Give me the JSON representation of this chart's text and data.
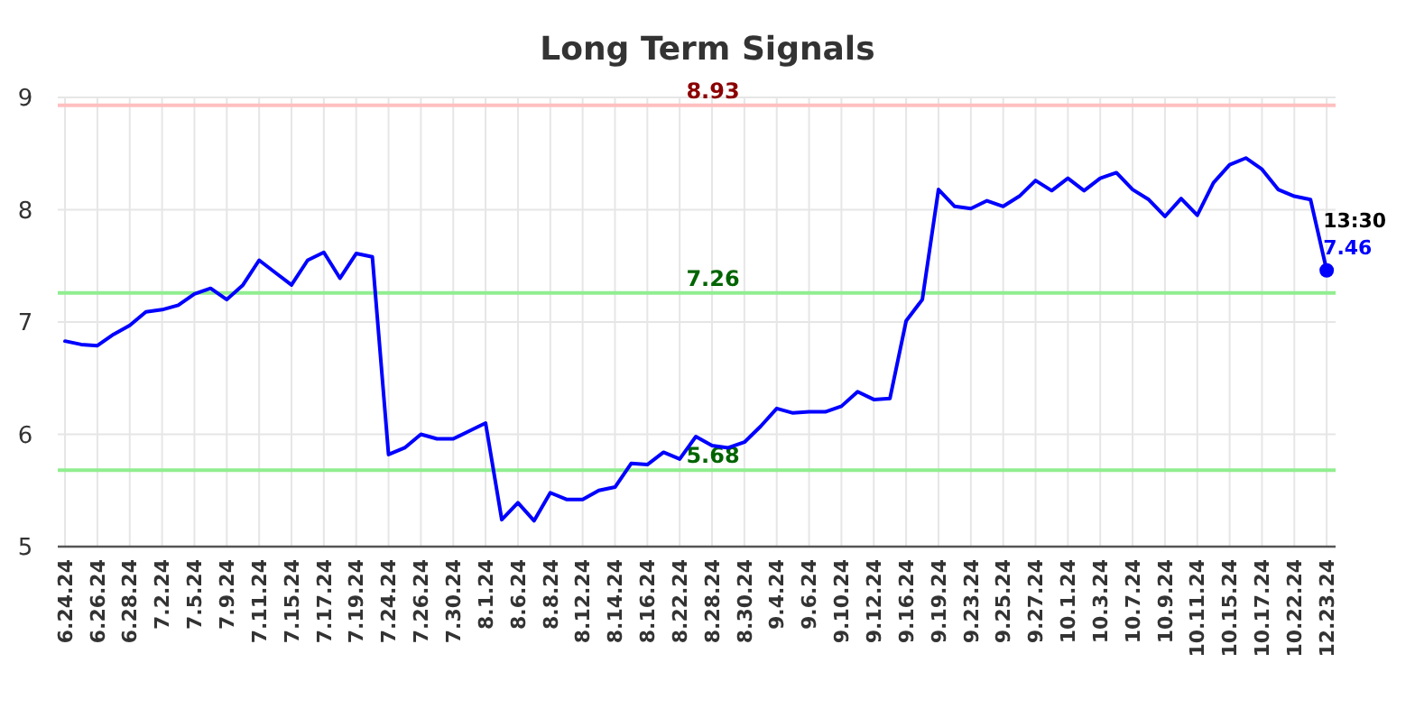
{
  "chart_data": {
    "type": "line",
    "title": "Long Term Signals",
    "categories": [
      "6.24.24",
      null,
      "6.26.24",
      null,
      "6.28.24",
      null,
      "7.2.24",
      null,
      "7.5.24",
      null,
      "7.9.24",
      null,
      "7.11.24",
      null,
      "7.15.24",
      null,
      "7.17.24",
      null,
      "7.19.24",
      null,
      "7.24.24",
      null,
      "7.26.24",
      null,
      "7.30.24",
      null,
      "8.1.24",
      null,
      "8.6.24",
      null,
      "8.8.24",
      null,
      "8.12.24",
      null,
      "8.14.24",
      null,
      "8.16.24",
      null,
      "8.22.24",
      null,
      "8.28.24",
      null,
      "8.30.24",
      null,
      "9.4.24",
      null,
      "9.6.24",
      null,
      "9.10.24",
      null,
      "9.12.24",
      null,
      "9.16.24",
      null,
      "9.19.24",
      null,
      "9.23.24",
      null,
      "9.25.24",
      null,
      "9.27.24",
      null,
      "10.1.24",
      null,
      "10.3.24",
      null,
      "10.7.24",
      null,
      "10.9.24",
      null,
      "10.11.24",
      null,
      "10.15.24",
      null,
      "10.17.24",
      null,
      "10.22.24",
      null,
      "12.23.24"
    ],
    "series": [
      {
        "color": "#0000ff",
        "values": [
          6.83,
          6.8,
          6.79,
          6.89,
          6.97,
          7.09,
          7.11,
          7.15,
          7.25,
          7.3,
          7.2,
          7.33,
          7.55,
          7.44,
          7.33,
          7.55,
          7.62,
          7.39,
          7.61,
          7.58,
          5.82,
          5.88,
          6.0,
          5.96,
          5.96,
          6.03,
          6.1,
          5.24,
          5.39,
          5.23,
          5.48,
          5.42,
          5.42,
          5.5,
          5.53,
          5.74,
          5.73,
          5.84,
          5.78,
          5.98,
          5.9,
          5.88,
          5.93,
          6.07,
          6.23,
          6.19,
          6.2,
          6.2,
          6.25,
          6.38,
          6.31,
          6.32,
          7.01,
          7.2,
          8.18,
          8.03,
          8.01,
          8.08,
          8.03,
          8.12,
          8.26,
          8.17,
          8.28,
          8.17,
          8.28,
          8.33,
          8.18,
          8.09,
          7.94,
          8.1,
          7.95,
          8.24,
          8.4,
          8.46,
          8.36,
          8.18,
          8.12,
          8.09,
          7.46
        ]
      },
      {
        "type": "scatter",
        "color": "#0000ff",
        "marker": "circle",
        "x": [
          "12.23.24"
        ],
        "values": [
          7.46
        ],
        "value_labels": [
          "7.46"
        ]
      }
    ],
    "ylim": [
      5,
      9
    ],
    "yticks": [
      5,
      6,
      7,
      8,
      9
    ],
    "grid": true,
    "ref_lines": [
      {
        "axis": "y",
        "value": 8.93,
        "label": "8.93",
        "color": "#ffc0c0"
      },
      {
        "axis": "y",
        "value": 7.26,
        "label": "7.26",
        "color": "#90ee90"
      },
      {
        "axis": "y",
        "value": 5.68,
        "label": "5.68",
        "color": "#90ee90"
      }
    ],
    "annotations": [
      {
        "text": "13:30",
        "x": "12.23.24",
        "y": 7.46
      }
    ]
  }
}
